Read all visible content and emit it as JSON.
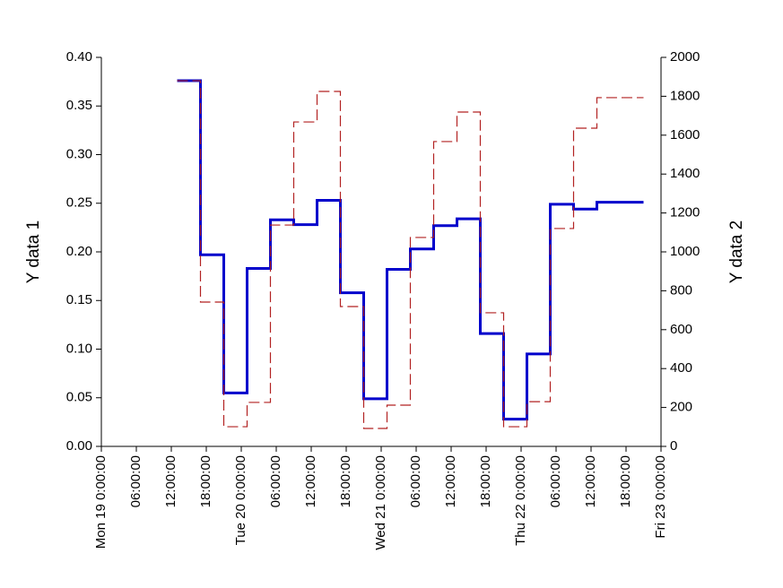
{
  "chart_data": {
    "type": "step",
    "ylabel": "Y data 1",
    "y2label": "Y data 2",
    "xlim": [
      0,
      96
    ],
    "xticks": [
      {
        "value": 0,
        "label": "Mon 19 0:00:00"
      },
      {
        "value": 6,
        "label": "06:00:00"
      },
      {
        "value": 12,
        "label": "12:00:00"
      },
      {
        "value": 18,
        "label": "18:00:00"
      },
      {
        "value": 24,
        "label": "Tue 20 0:00:00"
      },
      {
        "value": 30,
        "label": "06:00:00"
      },
      {
        "value": 36,
        "label": "12:00:00"
      },
      {
        "value": 42,
        "label": "18:00:00"
      },
      {
        "value": 48,
        "label": "Wed 21 0:00:00"
      },
      {
        "value": 54,
        "label": "06:00:00"
      },
      {
        "value": 60,
        "label": "12:00:00"
      },
      {
        "value": 66,
        "label": "18:00:00"
      },
      {
        "value": 72,
        "label": "Thu 22 0:00:00"
      },
      {
        "value": 78,
        "label": "06:00:00"
      },
      {
        "value": 84,
        "label": "12:00:00"
      },
      {
        "value": 90,
        "label": "18:00:00"
      },
      {
        "value": 96,
        "label": "Fri 23 0:00:00"
      }
    ],
    "ylim": [
      0,
      0.4
    ],
    "yticks": [
      {
        "value": 0,
        "label": "0.00"
      },
      {
        "value": 0.05,
        "label": "0.05"
      },
      {
        "value": 0.1,
        "label": "0.10"
      },
      {
        "value": 0.15,
        "label": "0.15"
      },
      {
        "value": 0.2,
        "label": "0.20"
      },
      {
        "value": 0.25,
        "label": "0.25"
      },
      {
        "value": 0.3,
        "label": "0.30"
      },
      {
        "value": 0.35,
        "label": "0.35"
      },
      {
        "value": 0.4,
        "label": "0.40"
      }
    ],
    "y2lim": [
      0,
      2000
    ],
    "y2ticks": [
      0,
      200,
      400,
      600,
      800,
      1000,
      1200,
      1400,
      1600,
      1800,
      2000
    ],
    "x": [
      13,
      17,
      21,
      25,
      29,
      33,
      37,
      41,
      45,
      49,
      53,
      57,
      61,
      65,
      69,
      73,
      77,
      81,
      85,
      89,
      93
    ],
    "series": [
      {
        "color": "#0000cc",
        "values": [
          0.376,
          0.197,
          0.055,
          0.183,
          0.233,
          0.228,
          0.253,
          0.158,
          0.049,
          0.182,
          0.203,
          0.227,
          0.234,
          0.116,
          0.028,
          0.095,
          0.249,
          0.244,
          0.251,
          0.251,
          0.251
        ]
      },
      {
        "color": "#b22222",
        "axis": "y2",
        "dashed": true,
        "values": [
          1880,
          742,
          101,
          226,
          1138,
          1668,
          1825,
          719,
          92,
          212,
          1074,
          1567,
          1719,
          687,
          101,
          230,
          1120,
          1636,
          1793,
          1793,
          1793
        ]
      }
    ]
  }
}
